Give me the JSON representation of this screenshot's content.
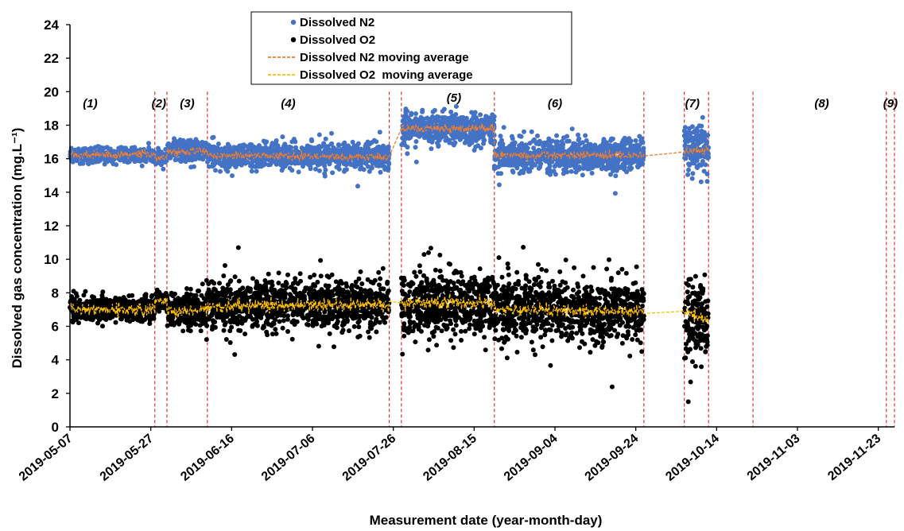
{
  "chart_data": {
    "type": "scatter",
    "xlabel": "Measurement date (year-month-day)",
    "ylabel": "Dissolved gas concentration (mg.L⁻¹)",
    "ylim": [
      0,
      24
    ],
    "xlim": [
      "2019-05-07",
      "2019-11-27"
    ],
    "yticks": [
      "0",
      "2",
      "4",
      "6",
      "8",
      "10",
      "12",
      "14",
      "16",
      "18",
      "20",
      "22",
      "24"
    ],
    "xticks": [
      "2019-05-07",
      "2019-05-27",
      "2019-06-16",
      "2019-07-06",
      "2019-07-26",
      "2019-08-15",
      "2019-09-04",
      "2019-09-24",
      "2019-10-14",
      "2019-11-03",
      "2019-11-23"
    ],
    "grid": false,
    "legend_position": "top-center",
    "period_boundaries": [
      "2019-05-28",
      "2019-05-31",
      "2019-06-10",
      "2019-07-25",
      "2019-07-28",
      "2019-08-20",
      "2019-09-26",
      "2019-10-06",
      "2019-10-12",
      "2019-10-23",
      "2019-11-25",
      "2019-11-27"
    ],
    "period_labels": [
      {
        "label": "(1)",
        "date": "2019-05-12"
      },
      {
        "label": "(2)",
        "date": "2019-05-29"
      },
      {
        "label": "(3)",
        "date": "2019-06-05"
      },
      {
        "label": "(4)",
        "date": "2019-06-30"
      },
      {
        "label": "(5)",
        "date": "2019-08-10"
      },
      {
        "label": "(6)",
        "date": "2019-09-04"
      },
      {
        "label": "(7)",
        "date": "2019-10-08"
      },
      {
        "label": "(8)",
        "date": "2019-11-09"
      },
      {
        "label": "(9)",
        "date": "2019-11-26"
      }
    ],
    "series": [
      {
        "name": "Dissolved N2",
        "kind": "scatter",
        "color": "#4472C4",
        "segments": [
          {
            "start": "2019-05-07",
            "end": "2019-05-28",
            "mean": 16.2,
            "spread": 0.2
          },
          {
            "start": "2019-05-28",
            "end": "2019-05-31",
            "mean": 16.05,
            "spread": 0.2
          },
          {
            "start": "2019-05-31",
            "end": "2019-06-10",
            "mean": 16.45,
            "spread": 0.3
          },
          {
            "start": "2019-06-10",
            "end": "2019-07-25",
            "mean": 16.2,
            "spread": 0.35
          },
          {
            "start": "2019-07-28",
            "end": "2019-08-20",
            "mean": 17.8,
            "spread": 0.45
          },
          {
            "start": "2019-08-20",
            "end": "2019-09-26",
            "mean": 16.2,
            "spread": 0.45
          },
          {
            "start": "2019-10-06",
            "end": "2019-10-12",
            "mean": 16.5,
            "spread": 0.65
          }
        ]
      },
      {
        "name": "Dissolved O2",
        "kind": "scatter",
        "color": "#000000",
        "segments": [
          {
            "start": "2019-05-07",
            "end": "2019-05-28",
            "mean": 7.0,
            "spread": 0.35
          },
          {
            "start": "2019-05-28",
            "end": "2019-05-31",
            "mean": 7.55,
            "spread": 0.3
          },
          {
            "start": "2019-05-31",
            "end": "2019-06-10",
            "mean": 6.9,
            "spread": 0.5
          },
          {
            "start": "2019-06-10",
            "end": "2019-07-25",
            "mean": 7.3,
            "spread": 0.7
          },
          {
            "start": "2019-07-28",
            "end": "2019-08-20",
            "mean": 7.3,
            "spread": 0.9
          },
          {
            "start": "2019-08-20",
            "end": "2019-09-26",
            "mean": 7.0,
            "spread": 0.9
          },
          {
            "start": "2019-10-06",
            "end": "2019-10-12",
            "mean": 6.2,
            "spread": 1.2
          }
        ]
      },
      {
        "name": "Dissolved N2 moving average",
        "kind": "line",
        "dash": true,
        "color": "#ED7D31",
        "x": [
          "2019-05-07",
          "2019-05-28",
          "2019-05-28",
          "2019-05-31",
          "2019-05-31",
          "2019-06-10",
          "2019-06-10",
          "2019-07-25",
          "2019-07-28",
          "2019-08-20",
          "2019-08-20",
          "2019-09-26",
          "2019-10-06",
          "2019-10-12"
        ],
        "y": [
          16.2,
          16.3,
          16.05,
          16.05,
          16.4,
          16.5,
          16.2,
          16.1,
          17.8,
          17.8,
          16.2,
          16.2,
          16.4,
          16.6
        ]
      },
      {
        "name": "Dissolved O2  moving average",
        "kind": "line",
        "dash": true,
        "color": "#FFC000",
        "x": [
          "2019-05-07",
          "2019-05-28",
          "2019-05-28",
          "2019-05-31",
          "2019-05-31",
          "2019-06-10",
          "2019-06-10",
          "2019-07-25",
          "2019-07-28",
          "2019-08-20",
          "2019-08-20",
          "2019-09-26",
          "2019-10-06",
          "2019-10-12"
        ],
        "y": [
          7.0,
          7.0,
          7.5,
          7.5,
          6.9,
          7.0,
          7.2,
          7.3,
          7.4,
          7.4,
          7.0,
          6.9,
          6.9,
          6.3
        ]
      }
    ]
  }
}
